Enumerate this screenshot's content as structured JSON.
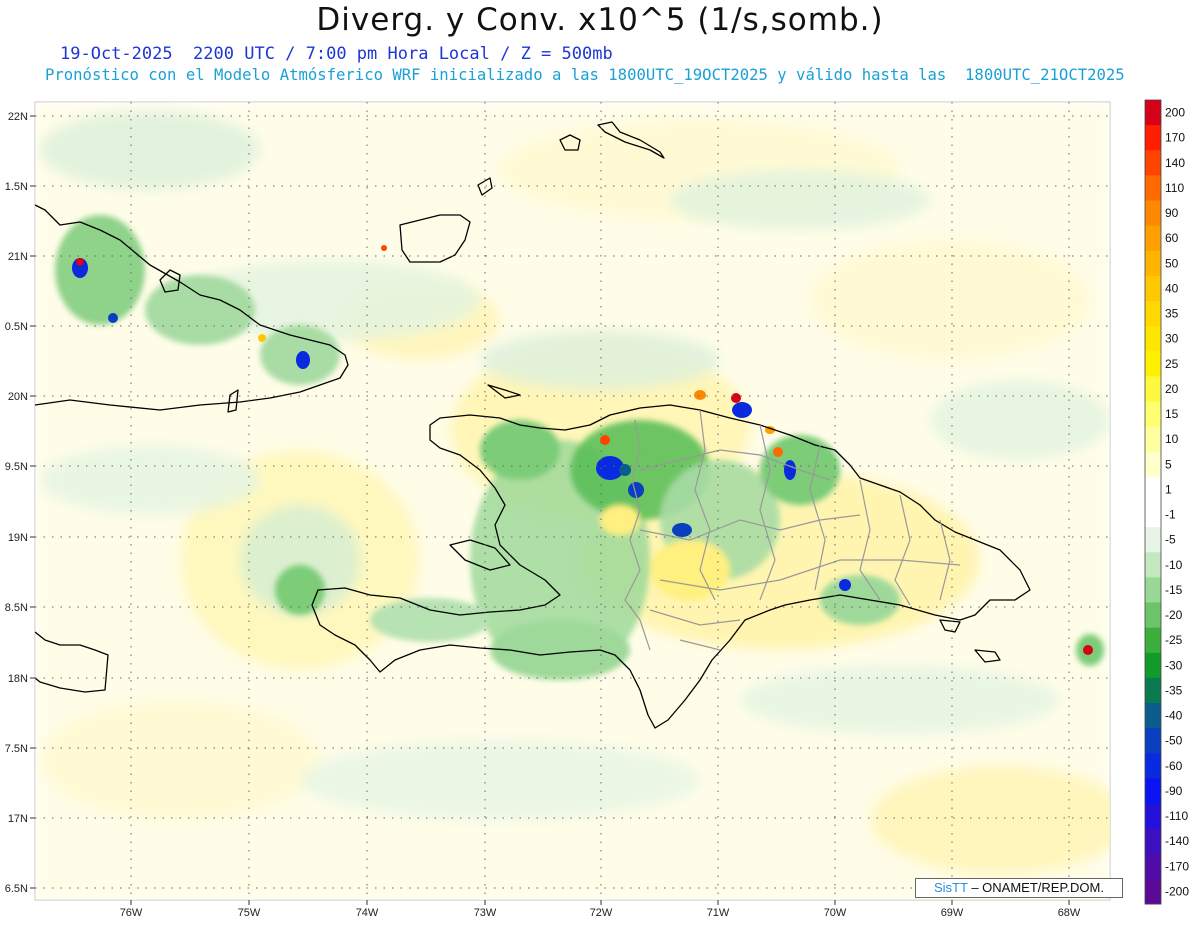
{
  "header": {
    "title": "Diverg. y Conv. x10^5 (1/s,somb.)",
    "line1": "19-Oct-2025  2200 UTC / 7:00 pm Hora Local / Z = 500mb",
    "line2": "Pronóstico con el Modelo Atmósferico WRF inicializado a las 1800UTC_19OCT2025 y válido hasta las  1800UTC_21OCT2025"
  },
  "axes": {
    "lat_labels": [
      "22N",
      "1.5N",
      "21N",
      "0.5N",
      "20N",
      "9.5N",
      "19N",
      "8.5N",
      "18N",
      "7.5N",
      "17N",
      "6.5N"
    ],
    "lon_labels": [
      "76W",
      "75W",
      "74W",
      "73W",
      "72W",
      "71W",
      "70W",
      "69W",
      "68W"
    ]
  },
  "colorbar": {
    "labels": [
      "200",
      "170",
      "140",
      "110",
      "90",
      "60",
      "50",
      "40",
      "35",
      "30",
      "25",
      "20",
      "15",
      "10",
      "5",
      "1",
      "-1",
      "-5",
      "-10",
      "-15",
      "-20",
      "-25",
      "-30",
      "-35",
      "-40",
      "-50",
      "-60",
      "-90",
      "-110",
      "-140",
      "-170",
      "-200"
    ],
    "colors": [
      "#d7001a",
      "#ff1e00",
      "#ff4400",
      "#ff6a00",
      "#ff8800",
      "#ffa000",
      "#ffb400",
      "#ffc800",
      "#ffd800",
      "#ffe600",
      "#fff000",
      "#fff840",
      "#ffff70",
      "#ffffa0",
      "#ffffcc",
      "#ffffff",
      "#ffffff",
      "#e8f5e6",
      "#c4e9c0",
      "#98d894",
      "#6cc46a",
      "#3cae3c",
      "#129a2a",
      "#0a7a52",
      "#0a5c8c",
      "#0a40c0",
      "#0a2ae0",
      "#0a14f0",
      "#2410d8",
      "#3c10c0",
      "#500ca8",
      "#5a0a96"
    ]
  },
  "credit": {
    "brand": "SisTT",
    "text": " – ONAMET/REP.DOM."
  }
}
